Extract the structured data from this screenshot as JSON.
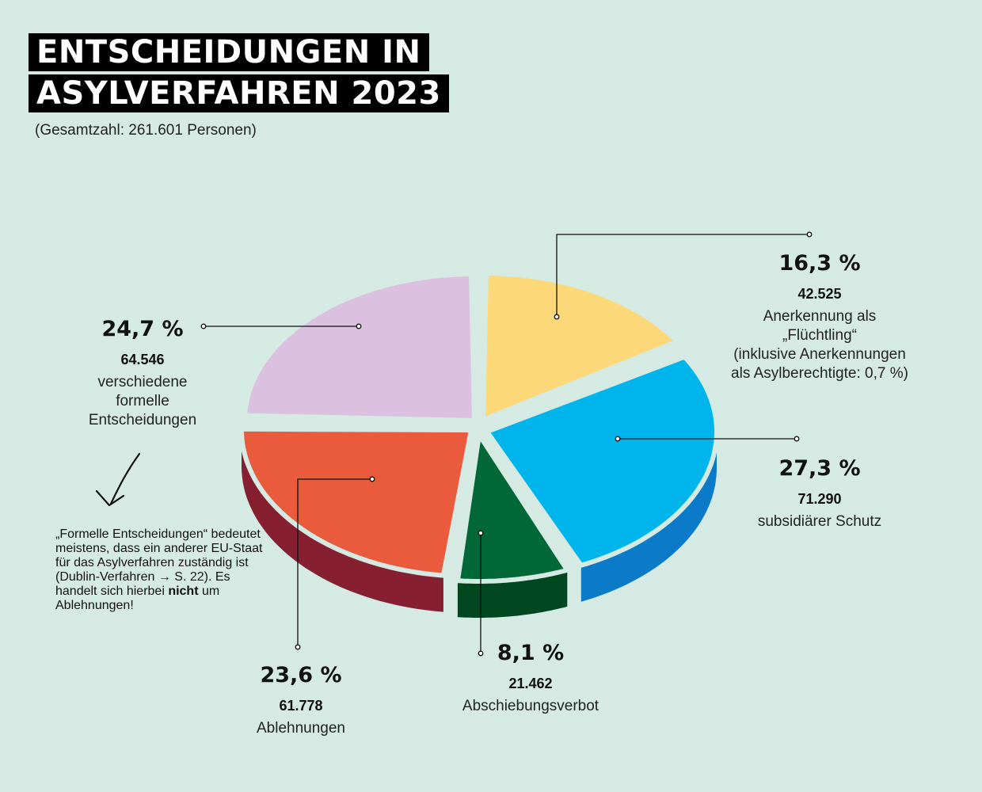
{
  "title_line1": "ENTSCHEIDUNGEN IN",
  "title_line2": "ASYLVERFAHREN 2023",
  "subtitle": "(Gesamtzahl: 261.601 Personen)",
  "note": {
    "part1": "„Formelle Entscheidungen“ bedeutet meistens, dass ein anderer EU-Staat für das Asylverfahren zuständig ist (Dublin-Verfahren → S. 22). Es handelt sich hierbei ",
    "bold": "nicht",
    "part2": " um Ablehnungen!"
  },
  "chart_data": {
    "type": "pie",
    "title": "ENTSCHEIDUNGEN IN ASYLVERFAHREN 2023",
    "subtitle": "(Gesamtzahl: 261.601 Personen)",
    "total": 261601,
    "slices": [
      {
        "pct_label": "16,3 %",
        "count_label": "42.525",
        "value": 42525,
        "percent": 16.3,
        "label_lines": [
          "Anerkennung als",
          "„Flüchtling“",
          "(inklusive Anerkennungen",
          "als Asylberechtigte: 0,7 %)"
        ],
        "color": "#fdd878",
        "side_color": "#e9bd4f"
      },
      {
        "pct_label": "27,3 %",
        "count_label": "71.290",
        "value": 71290,
        "percent": 27.3,
        "label_lines": [
          "subsidiärer Schutz"
        ],
        "color": "#00b5ec",
        "side_color": "#0a7ac9"
      },
      {
        "pct_label": "8,1 %",
        "count_label": "21.462",
        "value": 21462,
        "percent": 8.1,
        "label_lines": [
          "Abschiebungsverbot"
        ],
        "color": "#006837",
        "side_color": "#00471f"
      },
      {
        "pct_label": "23,6 %",
        "count_label": "61.778",
        "value": 61778,
        "percent": 23.6,
        "label_lines": [
          "Ablehnungen"
        ],
        "color": "#ea5b3e",
        "side_color": "#861f30"
      },
      {
        "pct_label": "24,7 %",
        "count_label": "64.546",
        "value": 64546,
        "percent": 24.7,
        "label_lines": [
          "verschiedene",
          "formelle",
          "Entscheidungen"
        ],
        "color": "#dbc0df",
        "side_color": "#b89ac0"
      }
    ]
  }
}
